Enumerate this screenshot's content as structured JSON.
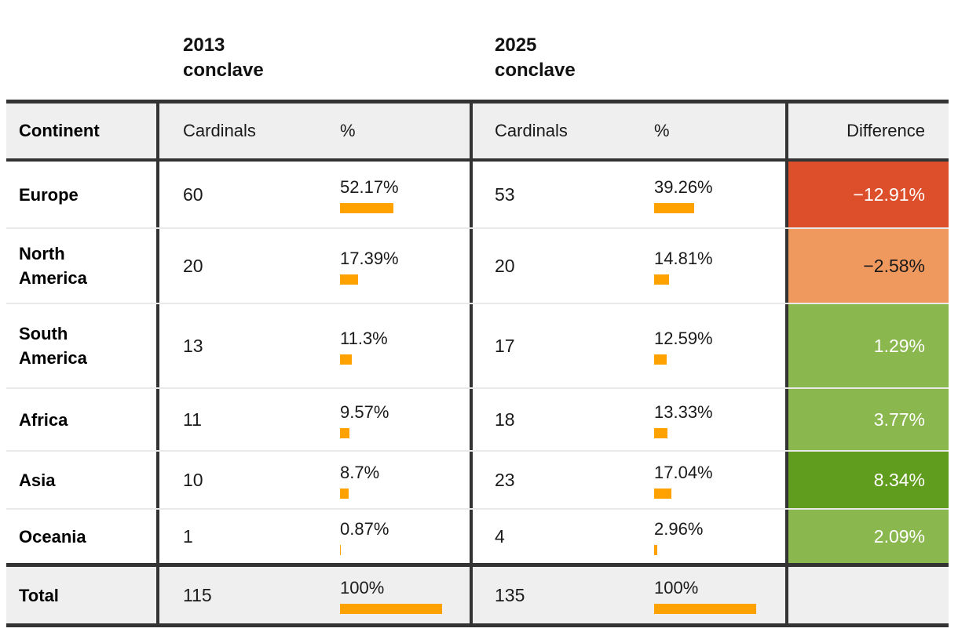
{
  "group_headers": [
    {
      "text": "2013\nconclave"
    },
    {
      "text": "2025\nconclave"
    }
  ],
  "headers": {
    "continent": "Continent",
    "cardinals_2013": "Cardinals",
    "percent_2013": "%",
    "cardinals_2025": "Cardinals",
    "percent_2025": "%",
    "difference": "Difference"
  },
  "table": {
    "rows": [
      {
        "continent": "Europe",
        "cardinals_2013": "60",
        "percent_2013": "52.17%",
        "pct_2013": 52.17,
        "cardinals_2025": "53",
        "percent_2025": "39.26%",
        "pct_2025": 39.26,
        "difference": "−12.91%",
        "diff_bg": "#dd4f2b",
        "diff_fg": "#ffffff"
      },
      {
        "continent": "North America",
        "cardinals_2013": "20",
        "percent_2013": "17.39%",
        "pct_2013": 17.39,
        "cardinals_2025": "20",
        "percent_2025": "14.81%",
        "pct_2025": 14.81,
        "difference": "−2.58%",
        "diff_bg": "#f0995f",
        "diff_fg": "#1a1a1a"
      },
      {
        "continent": "South America",
        "cardinals_2013": "13",
        "percent_2013": "11.3%",
        "pct_2013": 11.3,
        "cardinals_2025": "17",
        "percent_2025": "12.59%",
        "pct_2025": 12.59,
        "difference": "1.29%",
        "diff_bg": "#8ab74e",
        "diff_fg": "#ffffff"
      },
      {
        "continent": "Africa",
        "cardinals_2013": "11",
        "percent_2013": "9.57%",
        "pct_2013": 9.57,
        "cardinals_2025": "18",
        "percent_2025": "13.33%",
        "pct_2025": 13.33,
        "difference": "3.77%",
        "diff_bg": "#8ab74e",
        "diff_fg": "#ffffff"
      },
      {
        "continent": "Asia",
        "cardinals_2013": "10",
        "percent_2013": "8.7%",
        "pct_2013": 8.7,
        "cardinals_2025": "23",
        "percent_2025": "17.04%",
        "pct_2025": 17.04,
        "difference": "8.34%",
        "diff_bg": "#609c1d",
        "diff_fg": "#ffffff"
      },
      {
        "continent": "Oceania",
        "cardinals_2013": "1",
        "percent_2013": "0.87%",
        "pct_2013": 0.87,
        "cardinals_2025": "4",
        "percent_2025": "2.96%",
        "pct_2025": 2.96,
        "difference": "2.09%",
        "diff_bg": "#8ab74e",
        "diff_fg": "#ffffff"
      }
    ],
    "total": {
      "continent": "Total",
      "cardinals_2013": "115",
      "percent_2013": "100%",
      "pct_2013": 100,
      "cardinals_2025": "135",
      "percent_2025": "100%",
      "pct_2025": 100,
      "difference": ""
    }
  },
  "colors": {
    "bar_orange": "#ffa200",
    "border_dark": "#333333",
    "header_bg": "#efefef",
    "row_separator": "#e9e9e9",
    "negative_strong": "#dd4f2b",
    "negative_mild": "#f0995f",
    "positive_mild": "#8ab74e",
    "positive_strong": "#609c1d"
  },
  "chart_data": {
    "type": "table",
    "title": "",
    "columns": [
      "Continent",
      "2013 conclave Cardinals",
      "2013 conclave %",
      "2025 conclave Cardinals",
      "2025 conclave %",
      "Difference"
    ],
    "rows": [
      [
        "Europe",
        60,
        52.17,
        53,
        39.26,
        -12.91
      ],
      [
        "North America",
        20,
        17.39,
        20,
        14.81,
        -2.58
      ],
      [
        "South America",
        13,
        11.3,
        17,
        12.59,
        1.29
      ],
      [
        "Africa",
        11,
        9.57,
        18,
        13.33,
        3.77
      ],
      [
        "Asia",
        10,
        8.7,
        23,
        17.04,
        8.34
      ],
      [
        "Oceania",
        1,
        0.87,
        4,
        2.96,
        2.09
      ],
      [
        "Total",
        115,
        100,
        135,
        100,
        null
      ]
    ],
    "notes": "Percent cells render an inline orange bar proportional to value; Difference cells are color-coded red/orange for losses and green shades for gains."
  }
}
